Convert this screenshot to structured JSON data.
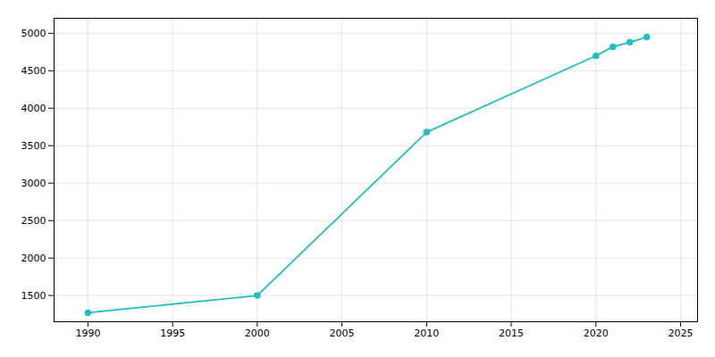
{
  "chart_data": {
    "type": "line",
    "x": [
      1990,
      2000,
      2010,
      2020,
      2021,
      2022,
      2023
    ],
    "values": [
      1270,
      1500,
      3680,
      4700,
      4820,
      4880,
      4950
    ],
    "color": "#20BEBE",
    "marker": "circle",
    "xlim": [
      1988,
      2026
    ],
    "ylim": [
      1150,
      5200
    ],
    "xticks": [
      1990,
      1995,
      2000,
      2005,
      2010,
      2015,
      2020,
      2025
    ],
    "yticks": [
      1500,
      2000,
      2500,
      3000,
      3500,
      4000,
      4500,
      5000
    ],
    "grid": true
  }
}
